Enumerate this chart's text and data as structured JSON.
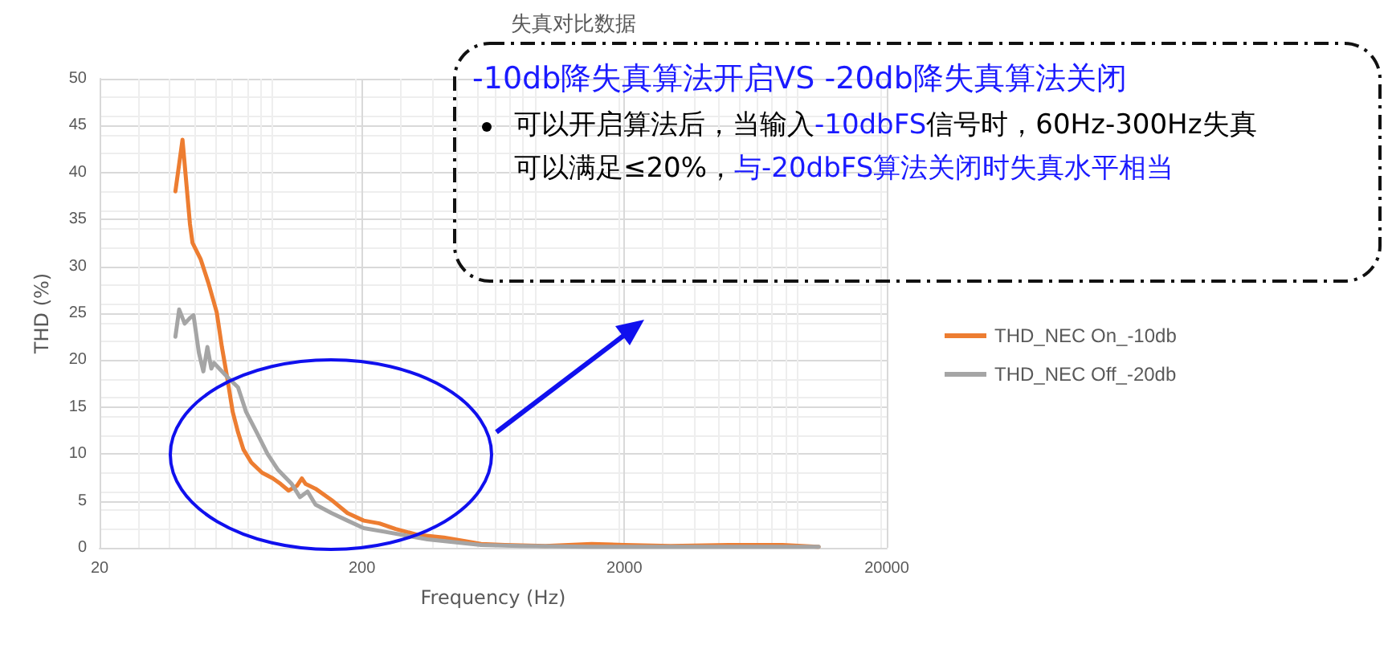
{
  "chart_data": {
    "type": "line",
    "title": "失真对比数据",
    "xlabel": "Frequency (Hz)",
    "ylabel": "THD (%)",
    "annotations": [
      "-10db降失真算法开启VS -20db降失真算法关闭",
      "可以开启算法后，当输入",
      "-10dbFS",
      "信号时，60Hz-300Hz失真可以满足≤20%，",
      "与-20dbFS算法关闭时失真水平相当"
    ],
    "log": "x",
    "xlim": [
      20,
      20000
    ],
    "xticks": [
      20,
      200,
      2000,
      20000
    ],
    "ylim": [
      0,
      50
    ],
    "yticks": [
      0,
      5,
      10,
      15,
      20,
      25,
      30,
      35,
      40,
      45,
      50
    ],
    "grid": true,
    "legend": "right",
    "marker": "none",
    "line_style": "solid",
    "series": [
      {
        "name": "THD_NEC On_-10db",
        "color": "#ed7d31",
        "x": [
          38.9,
          41.4,
          44.2,
          45.2,
          48.5,
          52.0,
          55.9,
          58.5,
          61.4,
          64.3,
          67.4,
          70.6,
          75.7,
          83.2,
          91.4,
          98,
          105,
          113,
          118,
          122,
          133,
          153,
          176,
          203,
          233,
          269,
          324,
          410,
          494,
          569,
          700,
          1000,
          1500,
          2000,
          3000,
          5000,
          8000,
          11000
        ],
        "values": [
          38,
          43.5,
          34.5,
          32.5,
          30.8,
          28.2,
          25.1,
          21.4,
          18,
          14.5,
          12.3,
          10.5,
          9.1,
          8,
          7.4,
          6.8,
          6.1,
          6.6,
          7.4,
          6.8,
          6.3,
          5.1,
          3.7,
          2.9,
          2.6,
          2,
          1.4,
          1.1,
          0.7,
          0.4,
          0.3,
          0.2,
          0.4,
          0.3,
          0.2,
          0.3,
          0.3,
          0.1
        ]
      },
      {
        "name": "THD_NEC Off_-20db",
        "color": "#a5a5a5",
        "x": [
          38.9,
          40.2,
          42.2,
          44.2,
          45.6,
          47.8,
          49.7,
          51.5,
          53.3,
          54.6,
          57.2,
          61.4,
          67.4,
          72.3,
          79.4,
          87.3,
          95.8,
          108,
          116,
          124,
          133,
          153,
          176,
          203,
          245,
          295,
          356,
          450,
          569,
          800,
          1500,
          3000,
          6000,
          11000
        ],
        "values": [
          22.5,
          25.4,
          23.9,
          24.5,
          24.8,
          20.8,
          18.8,
          21.4,
          19.1,
          19.7,
          19.1,
          18.2,
          17.1,
          14.5,
          12.3,
          10,
          8.3,
          6.8,
          5.4,
          6,
          4.6,
          3.7,
          2.9,
          2.1,
          1.7,
          1.3,
          0.9,
          0.6,
          0.3,
          0.2,
          0.1,
          0.1,
          0.1,
          0.1
        ]
      }
    ]
  }
}
